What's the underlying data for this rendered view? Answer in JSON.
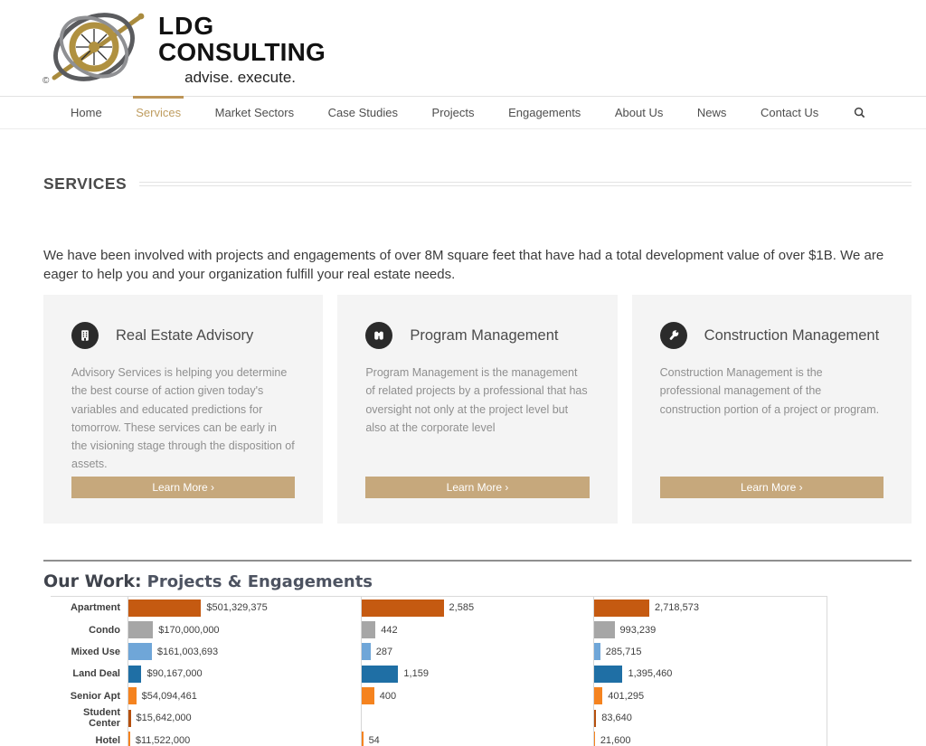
{
  "header": {
    "logo_line1": "LDG",
    "logo_line2": "CONSULTING",
    "tagline": "advise. execute.",
    "copyright_symbol": "©"
  },
  "nav": {
    "items": [
      {
        "label": "Home",
        "active": false
      },
      {
        "label": "Services",
        "active": true
      },
      {
        "label": "Market Sectors",
        "active": false
      },
      {
        "label": "Case Studies",
        "active": false
      },
      {
        "label": "Projects",
        "active": false
      },
      {
        "label": "Engagements",
        "active": false
      },
      {
        "label": "About Us",
        "active": false
      },
      {
        "label": "News",
        "active": false
      },
      {
        "label": "Contact Us",
        "active": false
      }
    ],
    "search_icon": "magnifier"
  },
  "page": {
    "title": "SERVICES",
    "intro": "We have been involved with projects and engagements of over 8M square feet that have had a total development value of over $1B. We are eager to help you and your organization fulfill your real estate needs."
  },
  "cards": [
    {
      "icon": "building-icon",
      "title": "Real Estate Advisory",
      "body": "Advisory Services is helping you determine the best course of action given today's variables and educated predictions for tomorrow. These services can be early in the visioning stage through the disposition of assets.",
      "button": "Learn More ›"
    },
    {
      "icon": "binoculars-icon",
      "title": "Program Management",
      "body": "Program Management is the management of related projects by a professional that has oversight not only at the project level but also at the corporate level",
      "button": "Learn More ›"
    },
    {
      "icon": "wrench-icon",
      "title": "Construction Management",
      "body": "Construction Management is the professional management of the construction portion of a project or program.",
      "button": "Learn More ›"
    }
  ],
  "our_work": {
    "title_strong": "Our Work:",
    "title_light": "Projects & Engagements"
  },
  "chart_data": {
    "type": "bar",
    "orientation": "horizontal",
    "title": "Our Work: Projects & Engagements",
    "categories": [
      "Apartment",
      "Condo",
      "Mixed Use",
      "Land Deal",
      "Senior Apt",
      "Student Center",
      "Hotel"
    ],
    "row_colors": [
      "#C55A11",
      "#A6A6A6",
      "#6FA6D8",
      "#1F6FA5",
      "#F5831F",
      "#B5500E",
      "#F5831F"
    ],
    "grid": "column-dividers",
    "series": [
      {
        "axis_max": 1600000000,
        "values": [
          501329375,
          170000000,
          161003693,
          90167000,
          54094461,
          15642000,
          11522000
        ],
        "labels": [
          "$501,329,375",
          "$170,000,000",
          "$161,003,693",
          "$90,167,000",
          "$54,094,461",
          "$15,642,000",
          "$11,522,000"
        ]
      },
      {
        "axis_max": 7300,
        "values": [
          2585,
          442,
          287,
          1159,
          400,
          null,
          54
        ],
        "labels": [
          "2,585",
          "442",
          "287",
          "1,159",
          "400",
          "",
          "54"
        ]
      },
      {
        "axis_max": 11500000,
        "values": [
          2718573,
          993239,
          285715,
          1395460,
          401295,
          83640,
          21600
        ],
        "labels": [
          "2,718,573",
          "993,239",
          "285,715",
          "1,395,460",
          "401,295",
          "83,640",
          "21,600"
        ]
      }
    ]
  }
}
